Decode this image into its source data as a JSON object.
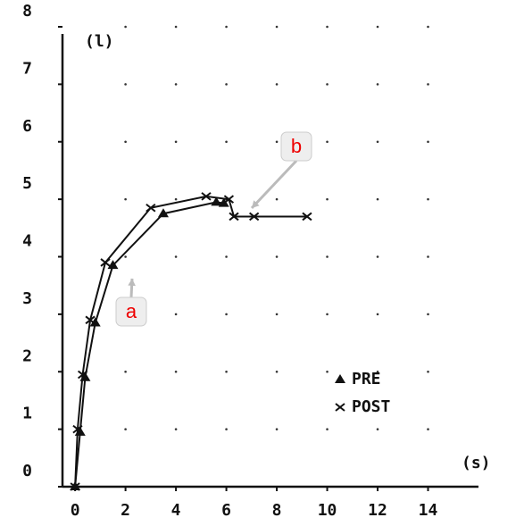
{
  "chart_data": {
    "type": "line",
    "y_label": "(l)",
    "x_label": "(s)",
    "xlim": [
      -0.5,
      16
    ],
    "ylim": [
      0,
      8
    ],
    "xticks": [
      0,
      2,
      4,
      6,
      8,
      10,
      12,
      14
    ],
    "yticks": [
      0,
      1,
      2,
      3,
      4,
      5,
      6,
      7,
      8
    ],
    "grid": true,
    "series": [
      {
        "name": "PRE",
        "color": "#111",
        "marker": "triangle",
        "x": [
          0,
          0.2,
          0.4,
          0.8,
          1.5,
          3.5,
          5.6,
          5.9
        ],
        "values": [
          0,
          0.95,
          1.9,
          2.85,
          3.85,
          4.75,
          4.95,
          4.93
        ]
      },
      {
        "name": "POST",
        "color": "#111",
        "marker": "cross",
        "x": [
          0,
          0.1,
          0.3,
          0.6,
          1.2,
          3.0,
          5.2,
          6.1,
          6.3,
          7.1,
          9.2
        ],
        "values": [
          0,
          1.0,
          1.95,
          2.9,
          3.9,
          4.85,
          5.05,
          5.0,
          4.7,
          4.7,
          4.7
        ]
      }
    ],
    "annotations": [
      {
        "text": "a"
      },
      {
        "text": "b"
      }
    ]
  }
}
